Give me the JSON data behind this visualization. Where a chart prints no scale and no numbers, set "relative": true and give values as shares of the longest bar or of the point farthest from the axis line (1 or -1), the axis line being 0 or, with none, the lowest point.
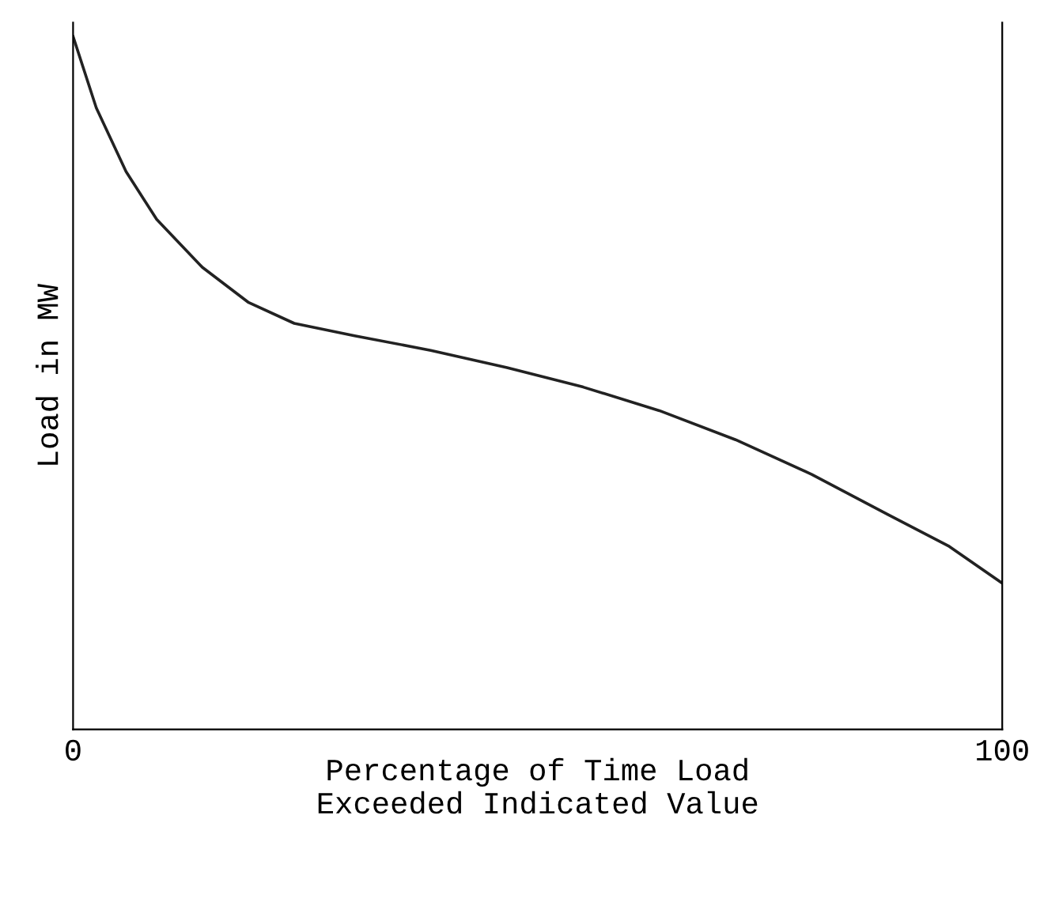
{
  "chart_data": {
    "type": "line",
    "xlabel": "Percentage of Time Load\nExceeded Indicated Value",
    "ylabel": "Load in MW",
    "relative": true,
    "xlim": [
      0,
      100
    ],
    "xticks": [
      0,
      100
    ],
    "series": [
      {
        "color": "#222222",
        "x": [
          0,
          2.5,
          5.7,
          9.0,
          13.9,
          18.9,
          23.8,
          30.3,
          38.5,
          46.7,
          54.9,
          63.1,
          71.3,
          79.5,
          87.7,
          94.3,
          100
        ],
        "values": [
          1.0,
          0.897,
          0.805,
          0.736,
          0.667,
          0.616,
          0.586,
          0.568,
          0.547,
          0.522,
          0.494,
          0.46,
          0.418,
          0.368,
          0.31,
          0.264,
          0.211
        ]
      }
    ],
    "grid": false
  }
}
